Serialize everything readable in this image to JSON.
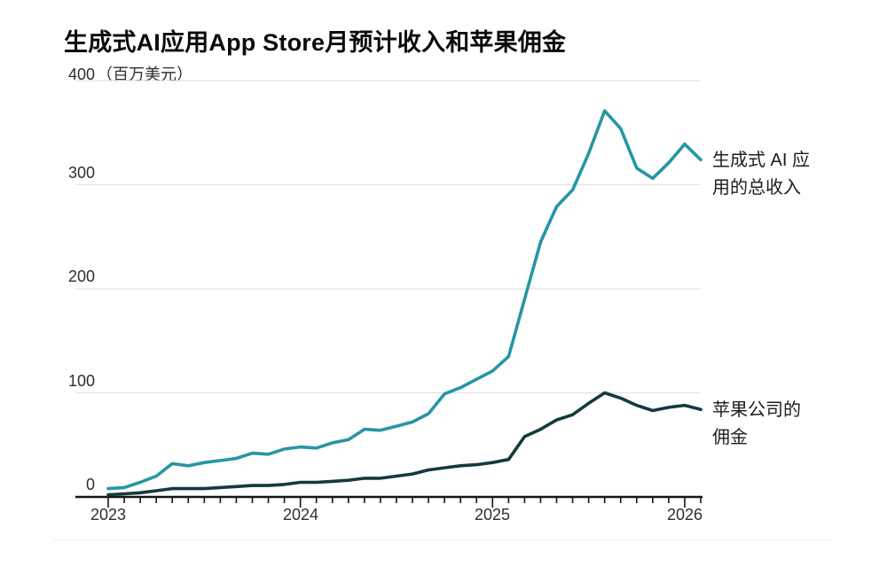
{
  "title": "生成式AI应用App Store月预计收入和苹果佣金",
  "y_axis": {
    "top_value": "400",
    "unit": "（百万美元）",
    "ticks": [
      "300",
      "200",
      "100",
      "0"
    ]
  },
  "x_axis": {
    "ticks": [
      "2023",
      "2024",
      "2025",
      "2026"
    ]
  },
  "annotations": {
    "revenue_lines": [
      "生成式 AI 应",
      "用的总收入"
    ],
    "commission_lines": [
      "苹果公司的",
      "佣金"
    ]
  },
  "colors": {
    "revenue": "#2596a4",
    "commission": "#15393d",
    "grid": "#e2e2e2",
    "axis": "#161616",
    "faint_rule": "#efefef"
  },
  "chart_data": {
    "type": "line",
    "title": "生成式AI应用App Store月预计收入和苹果佣金",
    "ylabel": "（百万美元）",
    "ylim": [
      0,
      400
    ],
    "y_gridlines": [
      100,
      200,
      300,
      400
    ],
    "legend_position": "right-annotations",
    "grid": true,
    "categories": [
      "2023-01",
      "2023-02",
      "2023-03",
      "2023-04",
      "2023-05",
      "2023-06",
      "2023-07",
      "2023-08",
      "2023-09",
      "2023-10",
      "2023-11",
      "2023-12",
      "2024-01",
      "2024-02",
      "2024-03",
      "2024-04",
      "2024-05",
      "2024-06",
      "2024-07",
      "2024-08",
      "2024-09",
      "2024-10",
      "2024-11",
      "2024-12",
      "2025-01",
      "2025-02",
      "2025-03",
      "2025-04",
      "2025-05",
      "2025-06",
      "2025-07",
      "2025-08",
      "2025-09",
      "2025-10",
      "2025-11",
      "2025-12",
      "2026-01",
      "2026-02"
    ],
    "series": [
      {
        "name": "生成式 AI 应用的总收入",
        "color": "#2596a4",
        "values": [
          8,
          9,
          14,
          20,
          32,
          30,
          33,
          35,
          37,
          42,
          41,
          46,
          48,
          47,
          52,
          55,
          65,
          64,
          68,
          72,
          80,
          99,
          105,
          113,
          121,
          135,
          190,
          245,
          279,
          295,
          330,
          371,
          354,
          316,
          306,
          321,
          339,
          324
        ]
      },
      {
        "name": "苹果公司的佣金",
        "color": "#15393d",
        "values": [
          2,
          3,
          4,
          6,
          8,
          8,
          8,
          9,
          10,
          11,
          11,
          12,
          14,
          14,
          15,
          16,
          18,
          18,
          20,
          22,
          26,
          28,
          30,
          31,
          33,
          36,
          58,
          65,
          74,
          79,
          90,
          100,
          95,
          88,
          83,
          86,
          88,
          84
        ]
      }
    ]
  }
}
